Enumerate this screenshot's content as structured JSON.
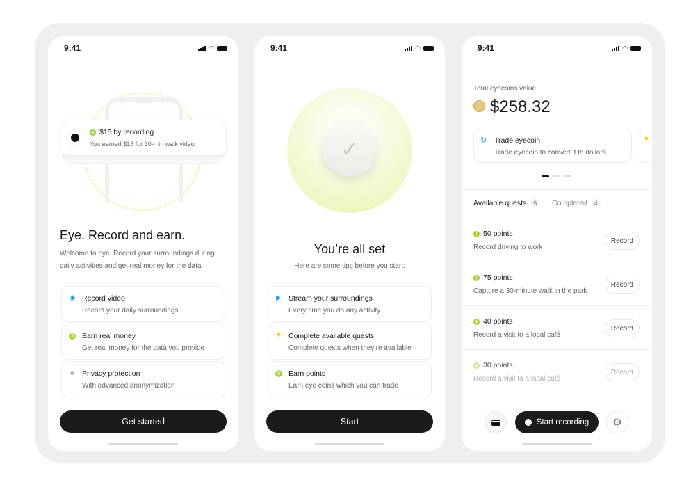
{
  "status": {
    "time": "9:41"
  },
  "screen1": {
    "notification": {
      "title": "$15 by recording",
      "subtitle": "You earned $15 for 30-min walk video"
    },
    "title": "Eye. Record and earn.",
    "description_line1": "Welcome to eye. Record your surroundings during",
    "description_line2": "daily activities and get real money for the data",
    "features": [
      {
        "icon": "camera-icon",
        "title": "Record video",
        "subtitle": "Record your daily surroundings"
      },
      {
        "icon": "dollar-icon",
        "title": "Earn real money",
        "subtitle": "Get real money for the data you provide"
      },
      {
        "icon": "lock-icon",
        "title": "Privacy protection",
        "subtitle": "With advanced anonymization"
      }
    ],
    "button": "Get started"
  },
  "screen2": {
    "title": "You’re all set",
    "subtitle": "Here are some tips before you start:",
    "tips": [
      {
        "icon": "video-icon",
        "title": "Stream your surroundings",
        "subtitle": "Every time you do any activity"
      },
      {
        "icon": "trophy-icon",
        "title": "Complete available quests",
        "subtitle": "Complete quests when they’re available"
      },
      {
        "icon": "dollar-icon",
        "title": "Earn points",
        "subtitle": "Earn eye coins which you can trade"
      }
    ],
    "button": "Start"
  },
  "screen3": {
    "balance_label": "Total eyecoins value",
    "balance": "$258.32",
    "card": {
      "title": "Trade eyecoin",
      "subtitle": "Trade eyecoin to convert it to dollars"
    },
    "carousel": {
      "pages": 3,
      "active": 1
    },
    "tabs": [
      {
        "label": "Available quests",
        "count": "6",
        "active": true
      },
      {
        "label": "Completed",
        "count": "4",
        "active": false
      }
    ],
    "quests": [
      {
        "points": "50 points",
        "desc": "Record driving to work",
        "action": "Record"
      },
      {
        "points": "75 points",
        "desc": "Capture a 30-minute walk in the park",
        "action": "Record"
      },
      {
        "points": "40 points",
        "desc": "Record a visit to a local café",
        "action": "Record"
      },
      {
        "points": "30 points",
        "desc": "Record a visit to a local café",
        "action": "Record"
      }
    ],
    "start_button": "Start recording"
  },
  "colors": {
    "accent": "#a6d22e",
    "dark": "#1b1b1b",
    "frame": "#eeeff1"
  }
}
